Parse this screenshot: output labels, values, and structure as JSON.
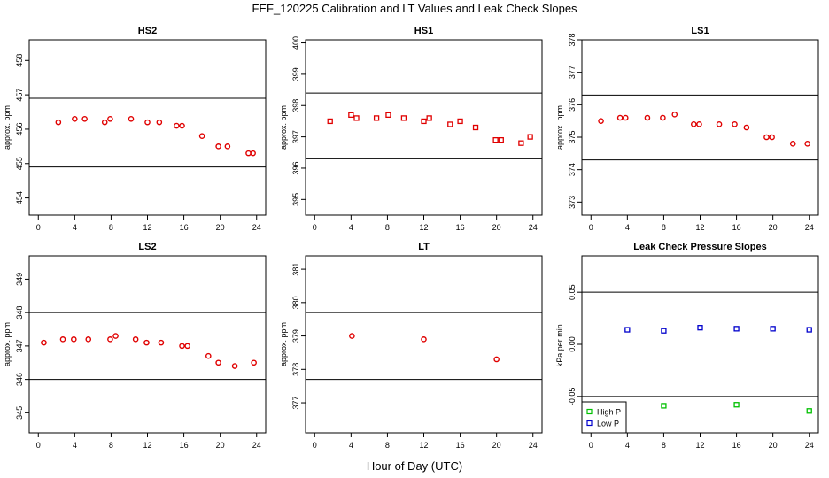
{
  "title": "FEF_120225  Calibration and LT Values and Leak Check Slopes",
  "xlabel": "Hour of Day (UTC)",
  "colors": {
    "points": "#e00000",
    "high_p": "#00c000",
    "low_p": "#0000cc",
    "axis": "#000000"
  },
  "chart_data": [
    {
      "type": "scatter",
      "title": "HS2",
      "ylabel": "approx. ppm",
      "xlim": [
        -1,
        25
      ],
      "ylim": [
        453.5,
        458.6
      ],
      "xticks": [
        0,
        4,
        8,
        12,
        16,
        20,
        24
      ],
      "yticks": [
        454,
        455,
        456,
        457,
        458
      ],
      "hlines": [
        456.9,
        454.9
      ],
      "series": [
        {
          "marker": "circle",
          "color": "#e00000",
          "x": [
            2.2,
            4.0,
            5.1,
            7.3,
            7.9,
            10.2,
            12.0,
            13.3,
            15.2,
            15.8,
            18.0,
            19.8,
            20.8,
            23.1,
            23.6
          ],
          "y": [
            456.2,
            456.3,
            456.3,
            456.2,
            456.3,
            456.3,
            456.2,
            456.2,
            456.1,
            456.1,
            455.8,
            455.5,
            455.5,
            455.3,
            455.3
          ]
        }
      ]
    },
    {
      "type": "scatter",
      "title": "HS1",
      "ylabel": "approx. ppm",
      "xlim": [
        -1,
        25
      ],
      "ylim": [
        394.5,
        400.1
      ],
      "xticks": [
        0,
        4,
        8,
        12,
        16,
        20,
        24
      ],
      "yticks": [
        395,
        396,
        397,
        398,
        399,
        400
      ],
      "hlines": [
        398.4,
        396.3
      ],
      "series": [
        {
          "marker": "square",
          "color": "#e00000",
          "x": [
            1.7,
            4.0,
            4.6,
            6.8,
            8.1,
            9.8,
            12.0,
            12.6,
            14.9,
            16.0,
            17.7,
            19.9,
            20.5,
            22.7,
            23.7
          ],
          "y": [
            397.5,
            397.7,
            397.6,
            397.6,
            397.7,
            397.6,
            397.5,
            397.6,
            397.4,
            397.5,
            397.3,
            396.9,
            396.9,
            396.8,
            397.0
          ]
        }
      ]
    },
    {
      "type": "scatter",
      "title": "LS1",
      "ylabel": "approx. ppm",
      "xlim": [
        -1,
        25
      ],
      "ylim": [
        372.6,
        378.0
      ],
      "xticks": [
        0,
        4,
        8,
        12,
        16,
        20,
        24
      ],
      "yticks": [
        373,
        374,
        375,
        376,
        377,
        378
      ],
      "hlines": [
        376.3,
        374.3
      ],
      "series": [
        {
          "marker": "circle",
          "color": "#e00000",
          "x": [
            1.1,
            3.2,
            3.8,
            6.2,
            7.9,
            9.2,
            11.3,
            11.9,
            14.1,
            15.8,
            17.1,
            19.3,
            19.9,
            22.2,
            23.8
          ],
          "y": [
            375.5,
            375.6,
            375.6,
            375.6,
            375.6,
            375.7,
            375.4,
            375.4,
            375.4,
            375.4,
            375.3,
            375.0,
            375.0,
            374.8,
            374.8
          ]
        }
      ]
    },
    {
      "type": "scatter",
      "title": "LS2",
      "ylabel": "approx. ppm",
      "xlim": [
        -1,
        25
      ],
      "ylim": [
        344.4,
        349.7
      ],
      "xticks": [
        0,
        4,
        8,
        12,
        16,
        20,
        24
      ],
      "yticks": [
        345,
        346,
        347,
        348,
        349
      ],
      "hlines": [
        348.0,
        346.0
      ],
      "series": [
        {
          "marker": "circle",
          "color": "#e00000",
          "x": [
            0.6,
            2.7,
            3.9,
            5.5,
            7.9,
            8.5,
            10.7,
            11.9,
            13.5,
            15.8,
            16.4,
            18.7,
            19.8,
            21.6,
            23.7
          ],
          "y": [
            347.1,
            347.2,
            347.2,
            347.2,
            347.2,
            347.3,
            347.2,
            347.1,
            347.1,
            347.0,
            347.0,
            346.7,
            346.5,
            346.4,
            346.5
          ]
        }
      ]
    },
    {
      "type": "scatter",
      "title": "LT",
      "ylabel": "approx. ppm",
      "xlim": [
        -1,
        25
      ],
      "ylim": [
        376.1,
        381.4
      ],
      "xticks": [
        0,
        4,
        8,
        12,
        16,
        20,
        24
      ],
      "yticks": [
        377,
        378,
        379,
        380,
        381
      ],
      "hlines": [
        379.7,
        377.7
      ],
      "series": [
        {
          "marker": "circle",
          "color": "#e00000",
          "x": [
            4.1,
            12.0,
            20.0
          ],
          "y": [
            379.0,
            378.9,
            378.3
          ]
        }
      ]
    },
    {
      "type": "scatter",
      "title": "Leak Check Pressure Slopes",
      "ylabel": "kPa per min.",
      "xlim": [
        -1,
        25
      ],
      "ylim": [
        -0.085,
        0.085
      ],
      "xticks": [
        0,
        4,
        8,
        12,
        16,
        20,
        24
      ],
      "yticks": [
        -0.05,
        0.0,
        0.05
      ],
      "ytick_labels": [
        "-0.05",
        "0.00",
        "0.05"
      ],
      "hlines": [
        0.05,
        -0.05
      ],
      "legend": {
        "position": "bottom-left",
        "entries": [
          "High P",
          "Low P"
        ]
      },
      "series": [
        {
          "name": "High P",
          "marker": "square",
          "color": "#00c000",
          "x": [
            8.0,
            16.0,
            24.0
          ],
          "y": [
            -0.059,
            -0.058,
            -0.064
          ]
        },
        {
          "name": "Low P",
          "marker": "square",
          "color": "#0000cc",
          "x": [
            4.0,
            8.0,
            12.0,
            16.0,
            20.0,
            24.0
          ],
          "y": [
            0.014,
            0.013,
            0.016,
            0.015,
            0.015,
            0.014
          ]
        }
      ]
    }
  ]
}
